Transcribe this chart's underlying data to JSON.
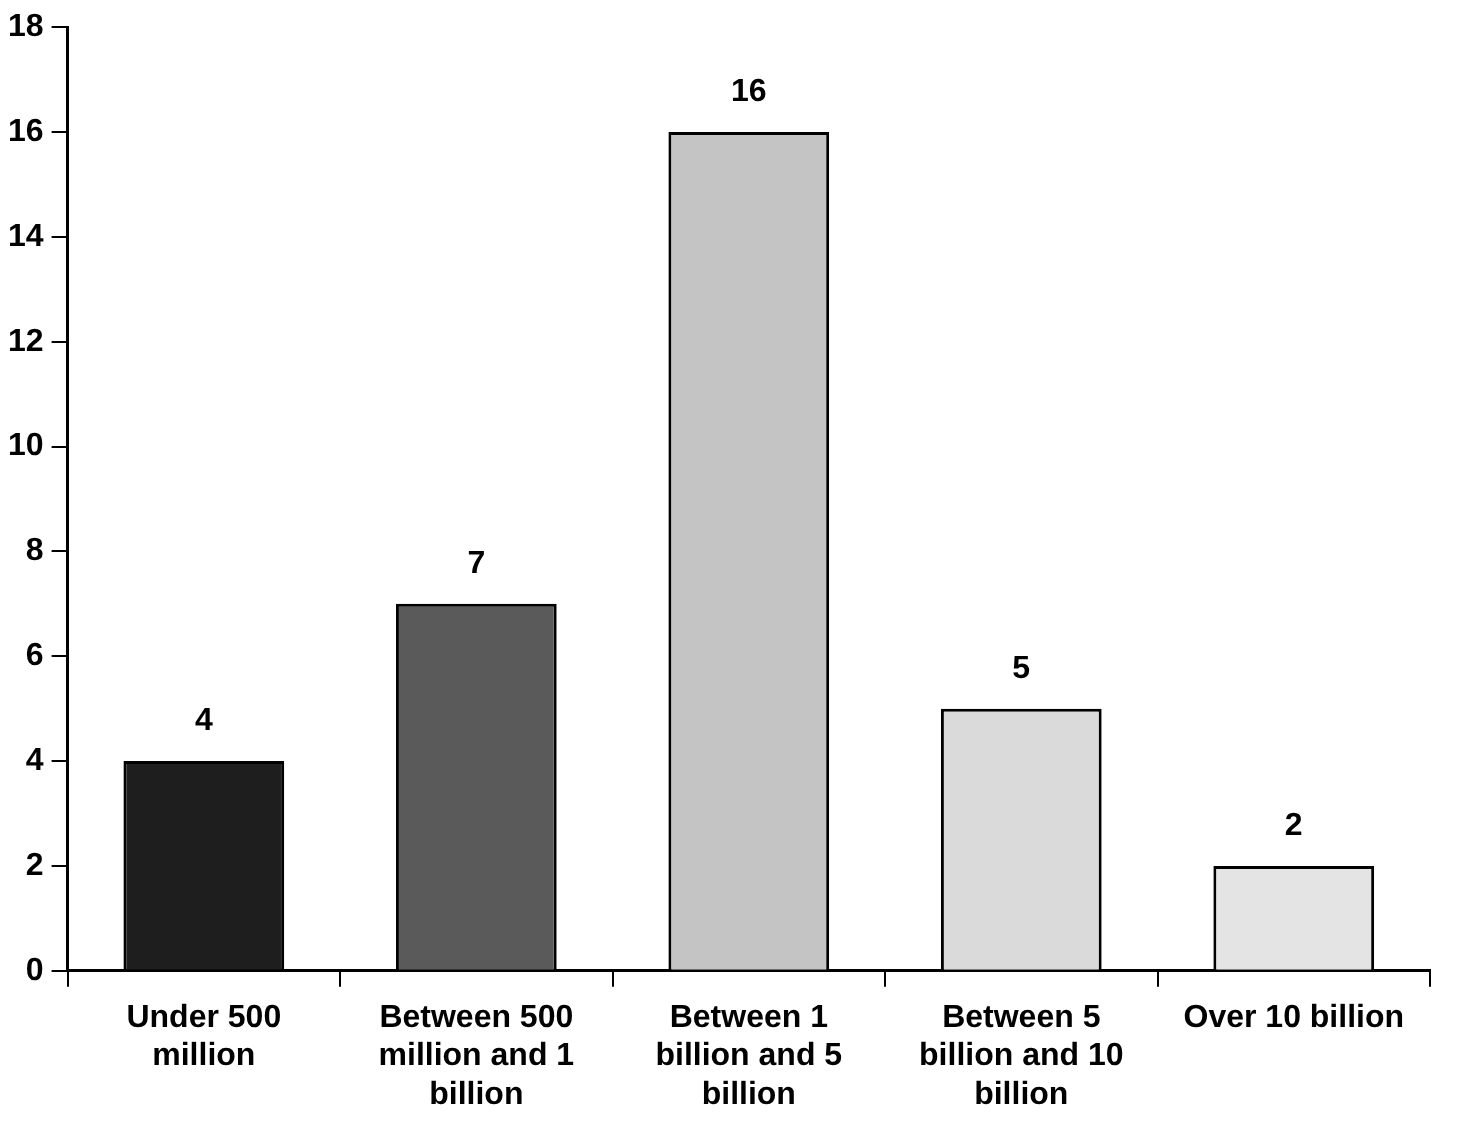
{
  "chart_data": {
    "type": "bar",
    "categories": [
      "Under 500 million",
      "Between 500 million and 1 billion",
      "Between 1 billion and 5 billion",
      "Between 5 billion and 10 billion",
      "Over 10 billion"
    ],
    "values": [
      4,
      7,
      16,
      5,
      2
    ],
    "colors": [
      "#1e1e1e",
      "#5a5a5a",
      "#c4c4c4",
      "#dadada",
      "#e4e4e4"
    ],
    "ylim": [
      0,
      18
    ],
    "yticks": [
      0,
      2,
      4,
      6,
      8,
      10,
      12,
      14,
      16,
      18
    ],
    "grid": false,
    "legend": false,
    "data_labels": true
  }
}
